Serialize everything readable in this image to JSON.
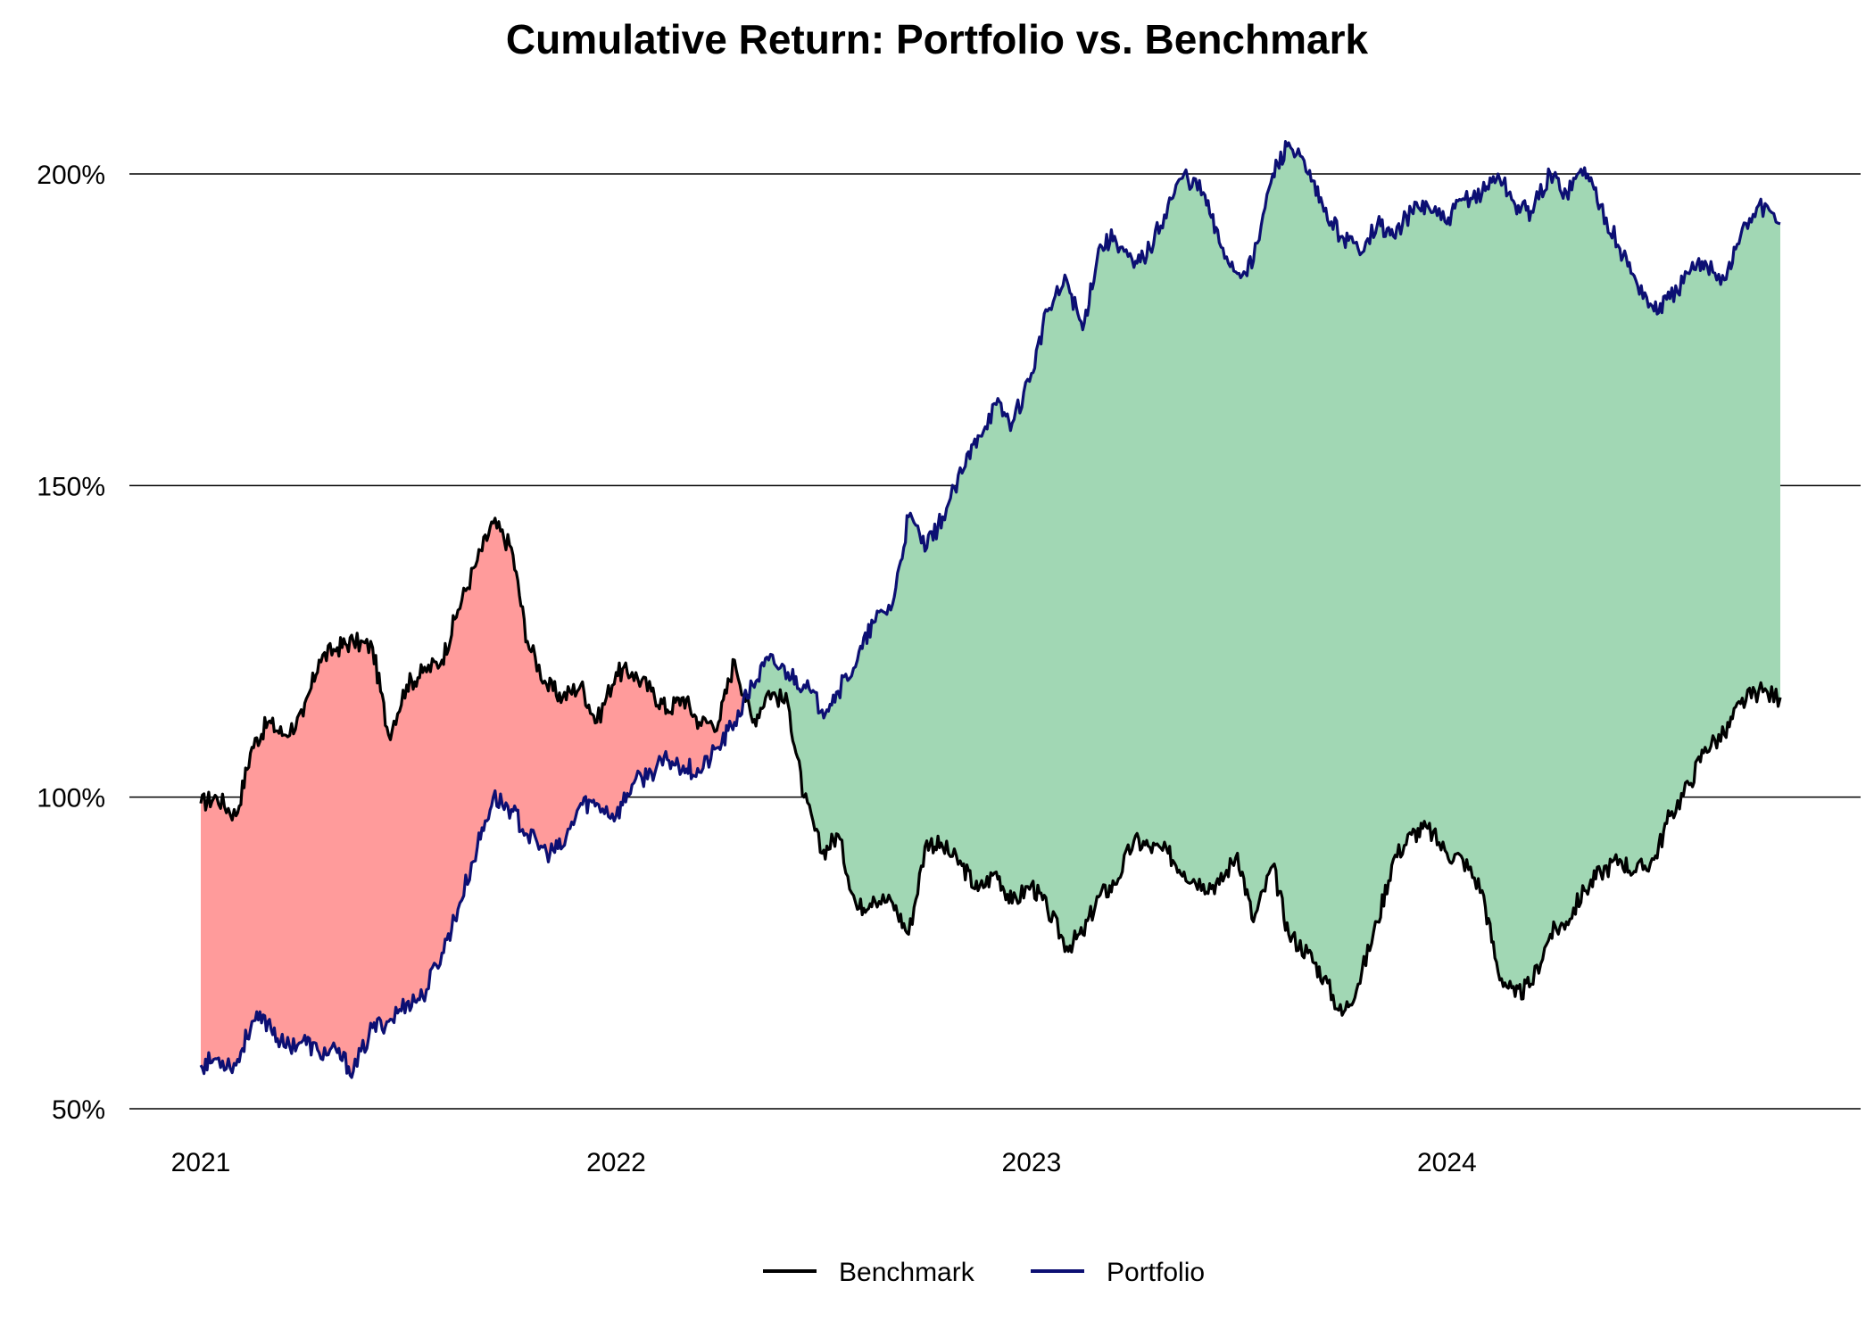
{
  "chart_data": {
    "type": "area",
    "title": "Cumulative Return: Portfolio vs. Benchmark",
    "xlabel": "",
    "ylabel": "",
    "x_ticks": [
      "2021",
      "2022",
      "2023",
      "2024"
    ],
    "y_ticks": [
      "50%",
      "100%",
      "150%",
      "200%"
    ],
    "y_tick_values": [
      50,
      100,
      150,
      200
    ],
    "ylim": [
      50,
      210
    ],
    "xlim": [
      "2021-01-01",
      "2024-10-20"
    ],
    "grid": "horizontal",
    "legend_position": "bottom-center",
    "fill_colors": {
      "portfolio_above": "#a1d7b4",
      "benchmark_above": "#ff9b9b"
    },
    "series": [
      {
        "name": "Benchmark",
        "color": "#000000",
        "x": [
          "2021-01-01",
          "2021-01-15",
          "2021-02-01",
          "2021-02-15",
          "2021-03-01",
          "2021-03-15",
          "2021-04-01",
          "2021-04-15",
          "2021-05-01",
          "2021-05-15",
          "2021-06-01",
          "2021-06-15",
          "2021-07-01",
          "2021-07-15",
          "2021-08-01",
          "2021-08-15",
          "2021-09-01",
          "2021-09-15",
          "2021-10-01",
          "2021-10-15",
          "2021-11-01",
          "2021-11-15",
          "2021-12-01",
          "2021-12-15",
          "2022-01-01",
          "2022-01-15",
          "2022-02-01",
          "2022-02-15",
          "2022-03-01",
          "2022-03-15",
          "2022-04-01",
          "2022-04-15",
          "2022-05-01",
          "2022-05-15",
          "2022-06-01",
          "2022-06-15",
          "2022-07-01",
          "2022-07-15",
          "2022-08-01",
          "2022-08-15",
          "2022-09-01",
          "2022-09-15",
          "2022-10-01",
          "2022-10-15",
          "2022-11-01",
          "2022-11-15",
          "2022-12-01",
          "2022-12-15",
          "2023-01-01",
          "2023-01-15",
          "2023-02-01",
          "2023-02-15",
          "2023-03-01",
          "2023-03-15",
          "2023-04-01",
          "2023-04-15",
          "2023-05-01",
          "2023-05-15",
          "2023-06-01",
          "2023-06-15",
          "2023-07-01",
          "2023-07-15",
          "2023-08-01",
          "2023-08-15",
          "2023-09-01",
          "2023-09-15",
          "2023-10-01",
          "2023-10-15",
          "2023-11-01",
          "2023-11-15",
          "2023-12-01",
          "2023-12-15",
          "2024-01-01",
          "2024-01-15",
          "2024-02-01",
          "2024-02-15",
          "2024-03-01",
          "2024-03-15",
          "2024-04-01",
          "2024-04-15",
          "2024-05-01",
          "2024-05-15",
          "2024-06-01",
          "2024-06-15",
          "2024-07-01",
          "2024-07-15",
          "2024-08-01",
          "2024-08-15",
          "2024-09-01",
          "2024-09-15",
          "2024-10-01",
          "2024-10-20"
        ],
        "values": [
          99,
          100,
          97,
          108,
          112,
          110,
          113,
          122,
          124,
          125,
          124,
          110,
          118,
          120,
          122,
          130,
          138,
          144,
          140,
          125,
          118,
          116,
          118,
          112,
          120,
          120,
          117,
          114,
          116,
          112,
          112,
          122,
          112,
          117,
          115,
          100,
          91,
          94,
          82,
          84,
          83,
          78,
          93,
          92,
          89,
          85,
          88,
          83,
          86,
          82,
          76,
          78,
          84,
          86,
          93,
          92,
          91,
          88,
          86,
          86,
          91,
          80,
          89,
          78,
          75,
          71,
          65,
          70,
          80,
          90,
          94,
          95,
          91,
          90,
          85,
          72,
          68,
          70,
          78,
          80,
          85,
          88,
          90,
          88,
          90,
          97,
          102,
          108,
          110,
          115,
          117,
          116
        ]
      },
      {
        "name": "Portfolio",
        "color": "#0c0f73",
        "x": [
          "2021-01-01",
          "2021-01-15",
          "2021-02-01",
          "2021-02-15",
          "2021-03-01",
          "2021-03-15",
          "2021-04-01",
          "2021-04-15",
          "2021-05-01",
          "2021-05-15",
          "2021-06-01",
          "2021-06-15",
          "2021-07-01",
          "2021-07-15",
          "2021-08-01",
          "2021-08-15",
          "2021-09-01",
          "2021-09-15",
          "2021-10-01",
          "2021-10-15",
          "2021-11-01",
          "2021-11-15",
          "2021-12-01",
          "2021-12-15",
          "2022-01-01",
          "2022-01-15",
          "2022-02-01",
          "2022-02-15",
          "2022-03-01",
          "2022-03-15",
          "2022-04-01",
          "2022-04-15",
          "2022-05-01",
          "2022-05-15",
          "2022-06-01",
          "2022-06-15",
          "2022-07-01",
          "2022-07-15",
          "2022-08-01",
          "2022-08-15",
          "2022-09-01",
          "2022-09-15",
          "2022-10-01",
          "2022-10-15",
          "2022-11-01",
          "2022-11-15",
          "2022-12-01",
          "2022-12-15",
          "2023-01-01",
          "2023-01-15",
          "2023-02-01",
          "2023-02-15",
          "2023-03-01",
          "2023-03-15",
          "2023-04-01",
          "2023-04-15",
          "2023-05-01",
          "2023-05-15",
          "2023-06-01",
          "2023-06-15",
          "2023-07-01",
          "2023-07-15",
          "2023-08-01",
          "2023-08-15",
          "2023-09-01",
          "2023-09-15",
          "2023-10-01",
          "2023-10-15",
          "2023-11-01",
          "2023-11-15",
          "2023-12-01",
          "2023-12-15",
          "2024-01-01",
          "2024-01-15",
          "2024-02-01",
          "2024-02-15",
          "2024-03-01",
          "2024-03-15",
          "2024-04-01",
          "2024-04-15",
          "2024-05-01",
          "2024-05-15",
          "2024-06-01",
          "2024-06-15",
          "2024-07-01",
          "2024-07-15",
          "2024-08-01",
          "2024-08-15",
          "2024-09-01",
          "2024-09-15",
          "2024-10-01",
          "2024-10-20"
        ],
        "values": [
          57,
          58,
          57,
          64,
          64,
          60,
          61,
          59,
          59,
          56,
          63,
          64,
          67,
          68,
          75,
          82,
          92,
          100,
          98,
          94,
          91,
          92,
          99,
          99,
          97,
          102,
          104,
          106,
          105,
          104,
          108,
          112,
          118,
          122,
          120,
          118,
          114,
          117,
          122,
          128,
          131,
          145,
          140,
          145,
          152,
          158,
          163,
          160,
          168,
          178,
          183,
          175,
          188,
          190,
          185,
          188,
          195,
          200,
          197,
          189,
          184,
          186,
          200,
          205,
          200,
          194,
          190,
          188,
          192,
          190,
          194,
          195,
          192,
          196,
          197,
          200,
          195,
          194,
          200,
          197,
          201,
          195,
          188,
          183,
          178,
          180,
          184,
          186,
          183,
          190,
          195,
          192
        ]
      }
    ]
  },
  "legend": {
    "items": [
      "Benchmark",
      "Portfolio"
    ]
  }
}
